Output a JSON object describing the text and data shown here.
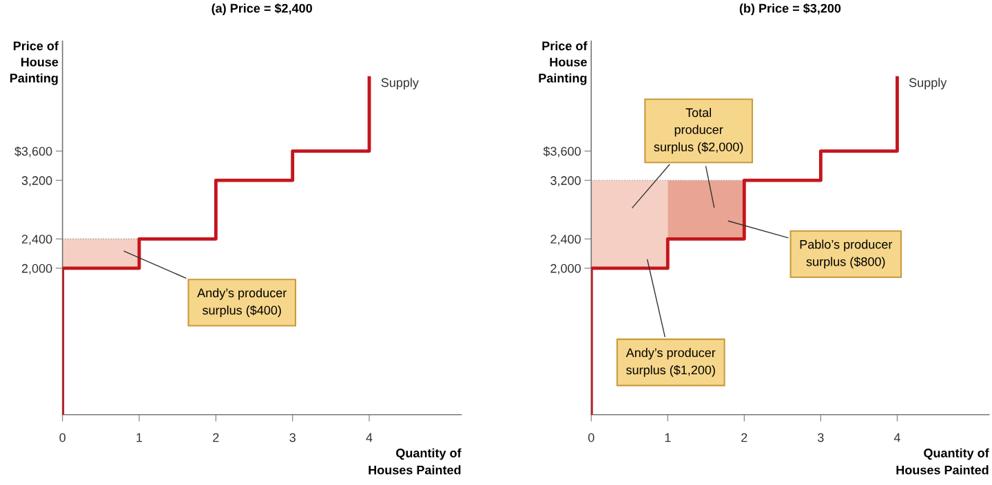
{
  "chart_data": [
    {
      "type": "step",
      "title": "(a) Price = $2,400",
      "xlabel": "Quantity of\nHouses Painted",
      "ylabel": "Price of\nHouse\nPainting",
      "xlim": [
        0,
        5.2
      ],
      "ylim": [
        0,
        5100
      ],
      "xticks": [
        0,
        1,
        2,
        3,
        4
      ],
      "yticks": [
        {
          "value": 2000,
          "label": "2,000"
        },
        {
          "value": 2400,
          "label": "2,400"
        },
        {
          "value": 3200,
          "label": "3,200"
        },
        {
          "value": 3600,
          "label": "$3,600"
        }
      ],
      "series": [
        {
          "name": "Supply",
          "color": "#c4161c",
          "x": [
            0,
            0,
            1,
            2,
            3,
            4
          ],
          "values": [
            0,
            2000,
            2400,
            3200,
            3600,
            4600
          ]
        },
        {
          "type": "bar",
          "color": "#f6cfc4",
          "x": [
            0.5
          ],
          "base": [
            2000
          ],
          "values": [
            400
          ]
        }
      ],
      "annotations": [
        "Andy’s producer\nsurplus ($400)"
      ],
      "legend": false,
      "grid": false
    },
    {
      "type": "step",
      "title": "(b) Price = $3,200",
      "xlabel": "Quantity of\nHouses Painted",
      "ylabel": "Price of\nHouse\nPainting",
      "xlim": [
        0,
        5.2
      ],
      "ylim": [
        0,
        5100
      ],
      "xticks": [
        0,
        1,
        2,
        3,
        4
      ],
      "yticks": [
        {
          "value": 2000,
          "label": "2,000"
        },
        {
          "value": 2400,
          "label": "2,400"
        },
        {
          "value": 3200,
          "label": "3,200"
        },
        {
          "value": 3600,
          "label": "$3,600"
        }
      ],
      "series": [
        {
          "name": "Supply",
          "color": "#c4161c",
          "x": [
            0,
            0,
            1,
            2,
            3,
            4
          ],
          "values": [
            0,
            2000,
            2400,
            3200,
            3600,
            4600
          ]
        },
        {
          "type": "bar",
          "color": "#f6cfc4",
          "x": [
            0.5
          ],
          "base": [
            2000
          ],
          "values": [
            1200
          ]
        },
        {
          "type": "bar",
          "color": "#e9a493",
          "x": [
            1.5
          ],
          "base": [
            2400
          ],
          "values": [
            800
          ]
        }
      ],
      "annotations": [
        "Total\nproducer\nsurplus ($2,000)",
        "Pablo’s producer\nsurplus ($800)",
        "Andy’s producer\nsurplus ($1,200)"
      ],
      "legend": false,
      "grid": false
    }
  ]
}
